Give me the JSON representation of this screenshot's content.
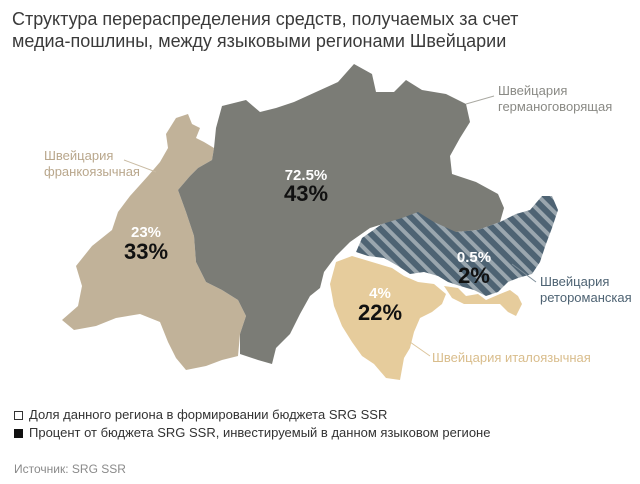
{
  "title": {
    "line1": "Структура перераспределения средств, получаемых за счет",
    "line2": "медиа-пошлины, между языковыми регионами Швейцарии"
  },
  "regions": {
    "german": {
      "label_line1": "Швейцария",
      "label_line2": "германоговорящая",
      "share": "72.5%",
      "invested": "43%",
      "color": "#7b7c76"
    },
    "french": {
      "label_line1": "Швейцария",
      "label_line2": "франкоязычная",
      "share": "23%",
      "invested": "33%",
      "color": "#c1b299"
    },
    "italian": {
      "label": "Швейцария италоязычная",
      "share": "4%",
      "invested": "22%",
      "color": "#e6cc9c"
    },
    "romansh": {
      "label_line1": "Швейцария",
      "label_line2": "ретороманская",
      "share": "0.5%",
      "invested": "2%",
      "color": "#4e6373"
    }
  },
  "legend": {
    "open_box": "Доля данного региона в формировании бюджета SRG SSR",
    "filled_box": "Процент от бюджета SRG SSR, инвестируемый в данном языковом регионе"
  },
  "source": "Источник: SRG SSR"
}
